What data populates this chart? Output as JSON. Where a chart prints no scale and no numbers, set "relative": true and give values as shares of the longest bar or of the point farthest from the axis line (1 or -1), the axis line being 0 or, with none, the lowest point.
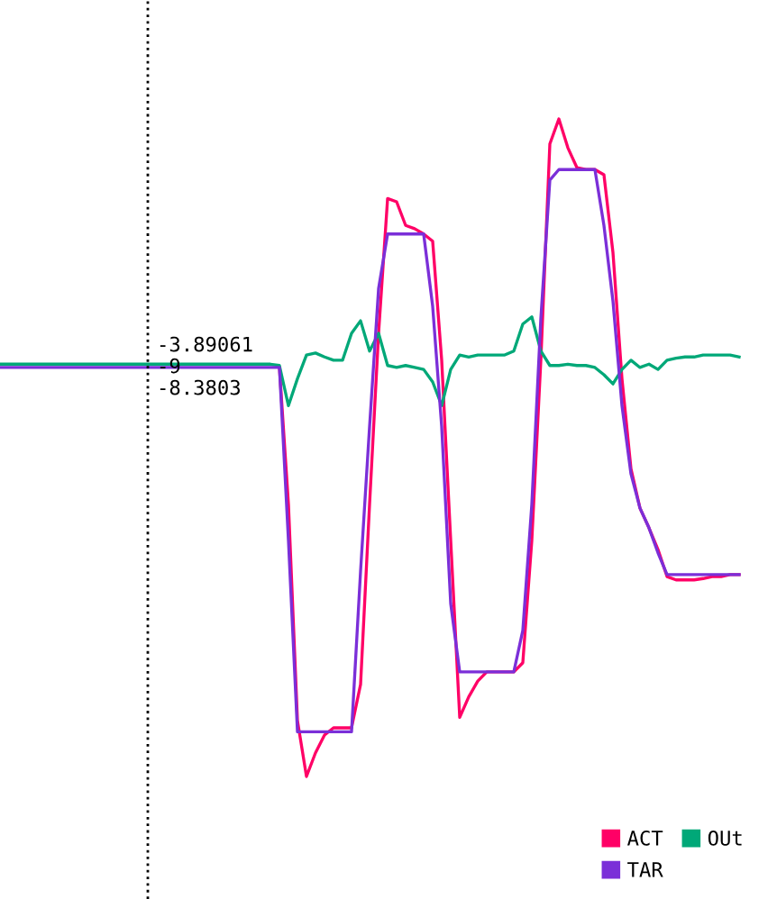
{
  "chart_data": {
    "type": "line",
    "relative": true,
    "categories": [
      null,
      null,
      null,
      null,
      null,
      null,
      null,
      null,
      null,
      null,
      null,
      null,
      null,
      null,
      null,
      null,
      null,
      null,
      null,
      null,
      null,
      null,
      null,
      null,
      null,
      null,
      null,
      null,
      null,
      null,
      null,
      null,
      null,
      null,
      null,
      null,
      null,
      null,
      null,
      null,
      null,
      null,
      null,
      null,
      null,
      null,
      null,
      null,
      null,
      null,
      null,
      null,
      null,
      null,
      null,
      null,
      null,
      null,
      null,
      null,
      null,
      null,
      null,
      null,
      null,
      null,
      null,
      null,
      null,
      null,
      null,
      null,
      null,
      null,
      null,
      null,
      null,
      null,
      null,
      null,
      null,
      null,
      null
    ],
    "series": [
      {
        "name": "ACT",
        "color": "#ff0066",
        "values": [
          null,
          null,
          null,
          null,
          null,
          null,
          null,
          null,
          null,
          null,
          null,
          null,
          null,
          null,
          null,
          null,
          null,
          null,
          null,
          null,
          null,
          null,
          null,
          null,
          null,
          null,
          null,
          null,
          null,
          null,
          null,
          0.622,
          0.414,
          0.085,
          0,
          0.036,
          0.063,
          0.074,
          0.074,
          0.074,
          0.14,
          0.414,
          0.674,
          0.879,
          0.874,
          0.838,
          0.833,
          0.825,
          0.814,
          0.633,
          0.359,
          0.09,
          0.121,
          0.145,
          0.159,
          0.159,
          0.159,
          0.159,
          0.173,
          0.359,
          0.633,
          0.962,
          1,
          0.956,
          0.926,
          0.923,
          0.923,
          0.915,
          0.797,
          0.605,
          0.468,
          0.408,
          0.378,
          0.345,
          0.304,
          0.299,
          0.299,
          0.299,
          0.301,
          0.304,
          0.304,
          0.307,
          0.307
        ]
      },
      {
        "name": "TAR",
        "color": "#7b2fd8",
        "values": [
          0.622,
          0.622,
          0.622,
          0.622,
          0.622,
          0.622,
          0.622,
          0.622,
          0.622,
          0.622,
          0.622,
          0.622,
          0.622,
          0.622,
          0.622,
          0.622,
          0.622,
          0.622,
          0.622,
          0.622,
          0.622,
          0.622,
          0.622,
          0.622,
          0.622,
          0.622,
          0.622,
          0.622,
          0.622,
          0.622,
          0.622,
          0.622,
          0.359,
          0.068,
          0.068,
          0.068,
          0.068,
          0.068,
          0.068,
          0.068,
          0.312,
          0.532,
          0.742,
          0.825,
          0.825,
          0.825,
          0.825,
          0.825,
          0.715,
          0.532,
          0.263,
          0.159,
          0.159,
          0.159,
          0.159,
          0.159,
          0.159,
          0.159,
          0.222,
          0.414,
          0.696,
          0.907,
          0.923,
          0.923,
          0.923,
          0.923,
          0.923,
          0.838,
          0.723,
          0.564,
          0.46,
          0.408,
          0.378,
          0.34,
          0.307,
          0.307,
          0.307,
          0.307,
          0.307,
          0.307,
          0.307,
          0.307,
          0.307
        ]
      },
      {
        "name": "OUt",
        "color": "#00a878",
        "values": [
          0.627,
          0.627,
          0.627,
          0.627,
          0.627,
          0.627,
          0.627,
          0.627,
          0.627,
          0.627,
          0.627,
          0.627,
          0.627,
          0.627,
          0.627,
          0.627,
          0.627,
          0.627,
          0.627,
          0.627,
          0.627,
          0.627,
          0.627,
          0.627,
          0.627,
          0.627,
          0.627,
          0.627,
          0.627,
          0.627,
          0.627,
          0.625,
          0.564,
          0.605,
          0.641,
          0.644,
          0.638,
          0.633,
          0.633,
          0.674,
          0.693,
          0.647,
          0.674,
          0.625,
          0.622,
          0.625,
          0.622,
          0.619,
          0.6,
          0.564,
          0.619,
          0.641,
          0.638,
          0.641,
          0.641,
          0.641,
          0.641,
          0.647,
          0.688,
          0.699,
          0.647,
          0.625,
          0.625,
          0.627,
          0.625,
          0.625,
          0.622,
          0.611,
          0.597,
          0.619,
          0.633,
          0.622,
          0.627,
          0.619,
          0.633,
          0.636,
          0.638,
          0.638,
          0.641,
          0.641,
          0.641,
          0.641,
          0.638
        ]
      }
    ],
    "annotations": [
      "-3.89061",
      "-9",
      "-8.3803"
    ],
    "legend": "bottom right",
    "grid": false,
    "line_style": "solid",
    "marker": "none"
  }
}
